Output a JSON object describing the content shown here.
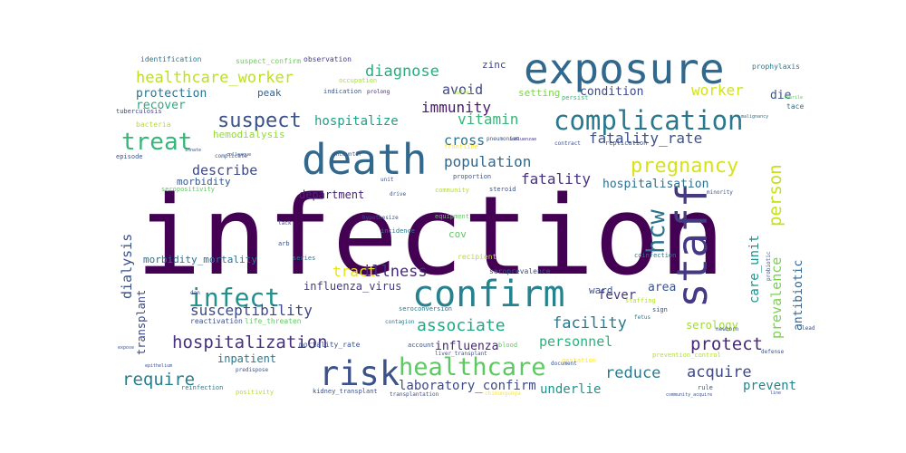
{
  "words": [
    {
      "text": "infection",
      "color": "#440154"
    },
    {
      "text": "death",
      "color": "#31688e"
    },
    {
      "text": "exposure",
      "color": "#31688e"
    },
    {
      "text": "staff",
      "color": "#443983"
    },
    {
      "text": "confirm",
      "color": "#26828e"
    },
    {
      "text": "risk",
      "color": "#3b528b"
    },
    {
      "text": "complication",
      "color": "#2a788e"
    },
    {
      "text": "healthcare",
      "color": "#5ec962"
    },
    {
      "text": "pregnancy",
      "color": "#d8e219"
    },
    {
      "text": "infect",
      "color": "#21918c"
    },
    {
      "text": "hcw",
      "color": "#2c728e"
    },
    {
      "text": "treat",
      "color": "#35b779"
    },
    {
      "text": "suspect",
      "color": "#3b528b"
    },
    {
      "text": "hospitalization",
      "color": "#46327e"
    },
    {
      "text": "person",
      "color": "#c8e020"
    },
    {
      "text": "healthcare_worker",
      "color": "#bddf26"
    },
    {
      "text": "associate",
      "color": "#22a884"
    },
    {
      "text": "facility",
      "color": "#2a788e"
    },
    {
      "text": "protect",
      "color": "#482878"
    },
    {
      "text": "require",
      "color": "#277f8e"
    },
    {
      "text": "acquire",
      "color": "#3e4a89"
    },
    {
      "text": "reduce",
      "color": "#287c8e"
    },
    {
      "text": "diagnose",
      "color": "#27ad81"
    },
    {
      "text": "susceptibility",
      "color": "#3e4989"
    },
    {
      "text": "fatality_rate",
      "color": "#3b528b"
    },
    {
      "text": "population",
      "color": "#31688e"
    },
    {
      "text": "immunity",
      "color": "#481a6c"
    },
    {
      "text": "vitamin",
      "color": "#35b779"
    },
    {
      "text": "illness",
      "color": "#472c7a"
    },
    {
      "text": "worker",
      "color": "#d2e21b"
    },
    {
      "text": "fatality",
      "color": "#46327e"
    },
    {
      "text": "hospitalize",
      "color": "#1fa187"
    },
    {
      "text": "tract",
      "color": "#e5e419"
    },
    {
      "text": "describe",
      "color": "#3e4989"
    },
    {
      "text": "avoid",
      "color": "#3f4788"
    },
    {
      "text": "cross",
      "color": "#2c728e"
    },
    {
      "text": "dialysis",
      "color": "#3b528b"
    },
    {
      "text": "care_unit",
      "color": "#20928c"
    },
    {
      "text": "prevalence",
      "color": "#7ad151"
    },
    {
      "text": "antibiotic",
      "color": "#32648e"
    },
    {
      "text": "protection",
      "color": "#2c728e"
    },
    {
      "text": "influenza",
      "color": "#482677"
    },
    {
      "text": "personnel",
      "color": "#2db27d"
    },
    {
      "text": "laboratory_confirm",
      "color": "#3e4a89"
    },
    {
      "text": "underlie",
      "color": "#20928c"
    },
    {
      "text": "prevent",
      "color": "#25858e"
    },
    {
      "text": "condition",
      "color": "#3e4989"
    },
    {
      "text": "fever",
      "color": "#453781"
    },
    {
      "text": "die",
      "color": "#3b528b"
    },
    {
      "text": "hospitalisation",
      "color": "#2d708e"
    },
    {
      "text": "department",
      "color": "#482677"
    },
    {
      "text": "inpatient",
      "color": "#2a788e"
    },
    {
      "text": "recover",
      "color": "#25ab82"
    },
    {
      "text": "area",
      "color": "#3a538b"
    },
    {
      "text": "serology",
      "color": "#a0da39"
    },
    {
      "text": "transplant",
      "color": "#3e4989"
    },
    {
      "text": "morbidity_mortality",
      "color": "#2d708e"
    },
    {
      "text": "influenza_virus",
      "color": "#443a83"
    },
    {
      "text": "zinc",
      "color": "#414487"
    },
    {
      "text": "setting",
      "color": "#7fd34e"
    },
    {
      "text": "peak",
      "color": "#34618d"
    },
    {
      "text": "hemodialysis",
      "color": "#95d840"
    },
    {
      "text": "ward",
      "color": "#3b528b"
    },
    {
      "text": "cov",
      "color": "#5ec962"
    },
    {
      "text": "morbidity",
      "color": "#38588c"
    },
    {
      "text": "identification",
      "color": "#2a788e"
    },
    {
      "text": "suspect_confirm",
      "color": "#6ccd5a"
    },
    {
      "text": "observation",
      "color": "#433e85"
    },
    {
      "text": "prophylaxis",
      "color": "#2a788e"
    },
    {
      "text": "occupation",
      "color": "#a8db34"
    },
    {
      "text": "indication",
      "color": "#3b528b"
    },
    {
      "text": "prolong",
      "color": "#482878"
    },
    {
      "text": "suffer",
      "color": "#9fda3a"
    },
    {
      "text": "persist",
      "color": "#38b977"
    },
    {
      "text": "febrile",
      "color": "#5ec962"
    },
    {
      "text": "tuberculosis",
      "color": "#404688"
    },
    {
      "text": "bacteria",
      "color": "#b5de2b"
    },
    {
      "text": "tace",
      "color": "#2e6e8e"
    },
    {
      "text": "malignancy",
      "color": "#2e6e8e"
    },
    {
      "text": "frontline",
      "color": "#fde725"
    },
    {
      "text": "pneumoniae",
      "color": "#3b528b"
    },
    {
      "text": "influenzae",
      "color": "#453781"
    },
    {
      "text": "contract",
      "color": "#3b528b"
    },
    {
      "text": "replication",
      "color": "#3b528b"
    },
    {
      "text": "encounter",
      "color": "#3b528b"
    },
    {
      "text": "complicate",
      "color": "#3b528b"
    },
    {
      "text": "innate",
      "color": "#3b528b"
    },
    {
      "text": "colleague",
      "color": "#3b528b"
    },
    {
      "text": "episode",
      "color": "#3b528b"
    },
    {
      "text": "seropositivity",
      "color": "#5ec962"
    },
    {
      "text": "proportion",
      "color": "#3b528b"
    },
    {
      "text": "steroid",
      "color": "#3b528b"
    },
    {
      "text": "community",
      "color": "#b5de2b"
    },
    {
      "text": "minority",
      "color": "#3b528b"
    },
    {
      "text": "drive",
      "color": "#3b528b"
    },
    {
      "text": "unit",
      "color": "#3b528b"
    },
    {
      "text": "equipment",
      "color": "#5ec962"
    },
    {
      "text": "hypothesize",
      "color": "#3b528b"
    },
    {
      "text": "incidence",
      "color": "#2a788e"
    },
    {
      "text": "series",
      "color": "#2a788e"
    },
    {
      "text": "arb",
      "color": "#3b528b"
    },
    {
      "text": "lack",
      "color": "#3b528b"
    },
    {
      "text": "recipient",
      "color": "#b5de2b"
    },
    {
      "text": "seroprevalence",
      "color": "#3b528b"
    },
    {
      "text": "coinfection",
      "color": "#2a788e"
    },
    {
      "text": "probiotic",
      "color": "#3b528b"
    },
    {
      "text": "newborn",
      "color": "#3b528b"
    },
    {
      "text": "staffing",
      "color": "#b5de2b"
    },
    {
      "text": "fetus",
      "color": "#2a788e"
    },
    {
      "text": "sign",
      "color": "#3b528b"
    },
    {
      "text": "lead",
      "color": "#3b528b"
    },
    {
      "text": "seroconversion",
      "color": "#2a788e"
    },
    {
      "text": "reactivation",
      "color": "#3b528b"
    },
    {
      "text": "life_threaten",
      "color": "#5ec962"
    },
    {
      "text": "contagion",
      "color": "#2a788e"
    },
    {
      "text": "mortality_rate",
      "color": "#3b528b"
    },
    {
      "text": "account",
      "color": "#3b528b"
    },
    {
      "text": "blood",
      "color": "#5ec962"
    },
    {
      "text": "liver_transplant",
      "color": "#3b528b"
    },
    {
      "text": "gestation",
      "color": "#fde725"
    },
    {
      "text": "prevention_control",
      "color": "#b5de2b"
    },
    {
      "text": "defense",
      "color": "#3b528b"
    },
    {
      "text": "predispose",
      "color": "#3b528b"
    },
    {
      "text": "epithelium",
      "color": "#3b528b"
    },
    {
      "text": "document",
      "color": "#3b528b"
    },
    {
      "text": "reinfection",
      "color": "#2a788e"
    },
    {
      "text": "positivity",
      "color": "#b5de2b"
    },
    {
      "text": "kidney_transplant",
      "color": "#3b528b"
    },
    {
      "text": "transplantation",
      "color": "#3b528b"
    },
    {
      "text": "chikungunya",
      "color": "#fde725"
    },
    {
      "text": "rule",
      "color": "#3b528b"
    },
    {
      "text": "line",
      "color": "#3b528b"
    },
    {
      "text": "community_acquire",
      "color": "#3b528b"
    },
    {
      "text": "dan",
      "color": "#3b528b"
    },
    {
      "text": "expose",
      "color": "#3b528b"
    }
  ]
}
